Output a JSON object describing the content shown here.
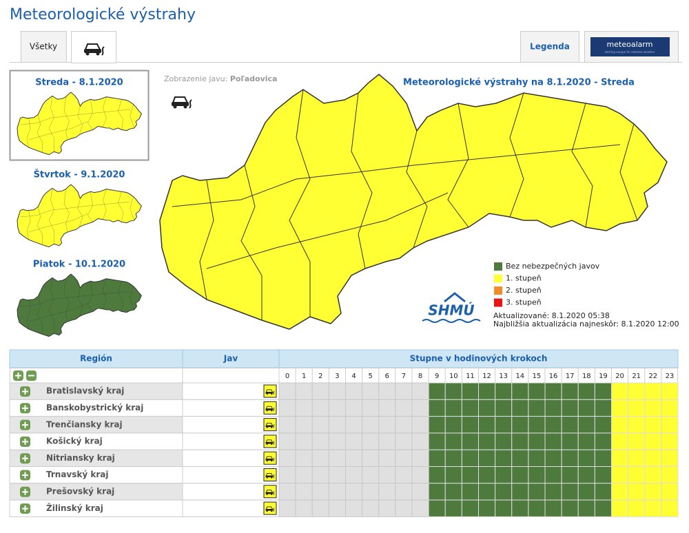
{
  "header": {
    "title": "Meteorologické výstrahy"
  },
  "tabs": {
    "all": "Všetky",
    "legend": "Legenda",
    "meteoalarm": "meteoalarm",
    "meteoalarm_tagline": "alerting europe for extreme weather"
  },
  "days": [
    {
      "label": "Streda - 8.1.2020",
      "color": "#ffff33"
    },
    {
      "label": "Štvrtok - 9.1.2020",
      "color": "#ffff33"
    },
    {
      "label": "Piatok - 10.1.2020",
      "color": "#4e7a3d"
    }
  ],
  "map": {
    "phenomenon_label": "Zobrazenie javu:",
    "phenomenon": "Poľadovica",
    "title": "Meteorologické výstrahy na 8.1.2020 - Streda",
    "color": "#ffff33"
  },
  "legend": [
    {
      "label": "Bez nebezpečných javov",
      "color": "#4e7a3d"
    },
    {
      "label": "1. stupeň",
      "color": "#ffff33"
    },
    {
      "label": "2. stupeň",
      "color": "#f28c28"
    },
    {
      "label": "3. stupeň",
      "color": "#ee1111"
    }
  ],
  "logo": "SHMÚ",
  "updated": "Aktualizované: 8.1.2020 05:38",
  "next_update": "Najbližšia aktualizácia najneskôr: 8.1.2020 12:00",
  "table": {
    "headers": [
      "Región",
      "Jav",
      "Stupne v hodinových krokoch"
    ],
    "hours": [
      0,
      1,
      2,
      3,
      4,
      5,
      6,
      7,
      8,
      9,
      10,
      11,
      12,
      13,
      14,
      15,
      16,
      17,
      18,
      19,
      20,
      21,
      22,
      23
    ],
    "hour_colors": [
      "#e0e0e0",
      "#e0e0e0",
      "#e0e0e0",
      "#e0e0e0",
      "#e0e0e0",
      "#e0e0e0",
      "#e0e0e0",
      "#e0e0e0",
      "#e0e0e0",
      "#4e7a3d",
      "#4e7a3d",
      "#4e7a3d",
      "#4e7a3d",
      "#4e7a3d",
      "#4e7a3d",
      "#4e7a3d",
      "#4e7a3d",
      "#4e7a3d",
      "#4e7a3d",
      "#4e7a3d",
      "#ffff33",
      "#ffff33",
      "#ffff33",
      "#ffff33"
    ],
    "rows": [
      "Bratislavský kraj",
      "Banskobystrický kraj",
      "Trenčiansky kraj",
      "Košický kraj",
      "Nitriansky kraj",
      "Trnavský kraj",
      "Prešovský kraj",
      "Žilinský kraj"
    ]
  }
}
